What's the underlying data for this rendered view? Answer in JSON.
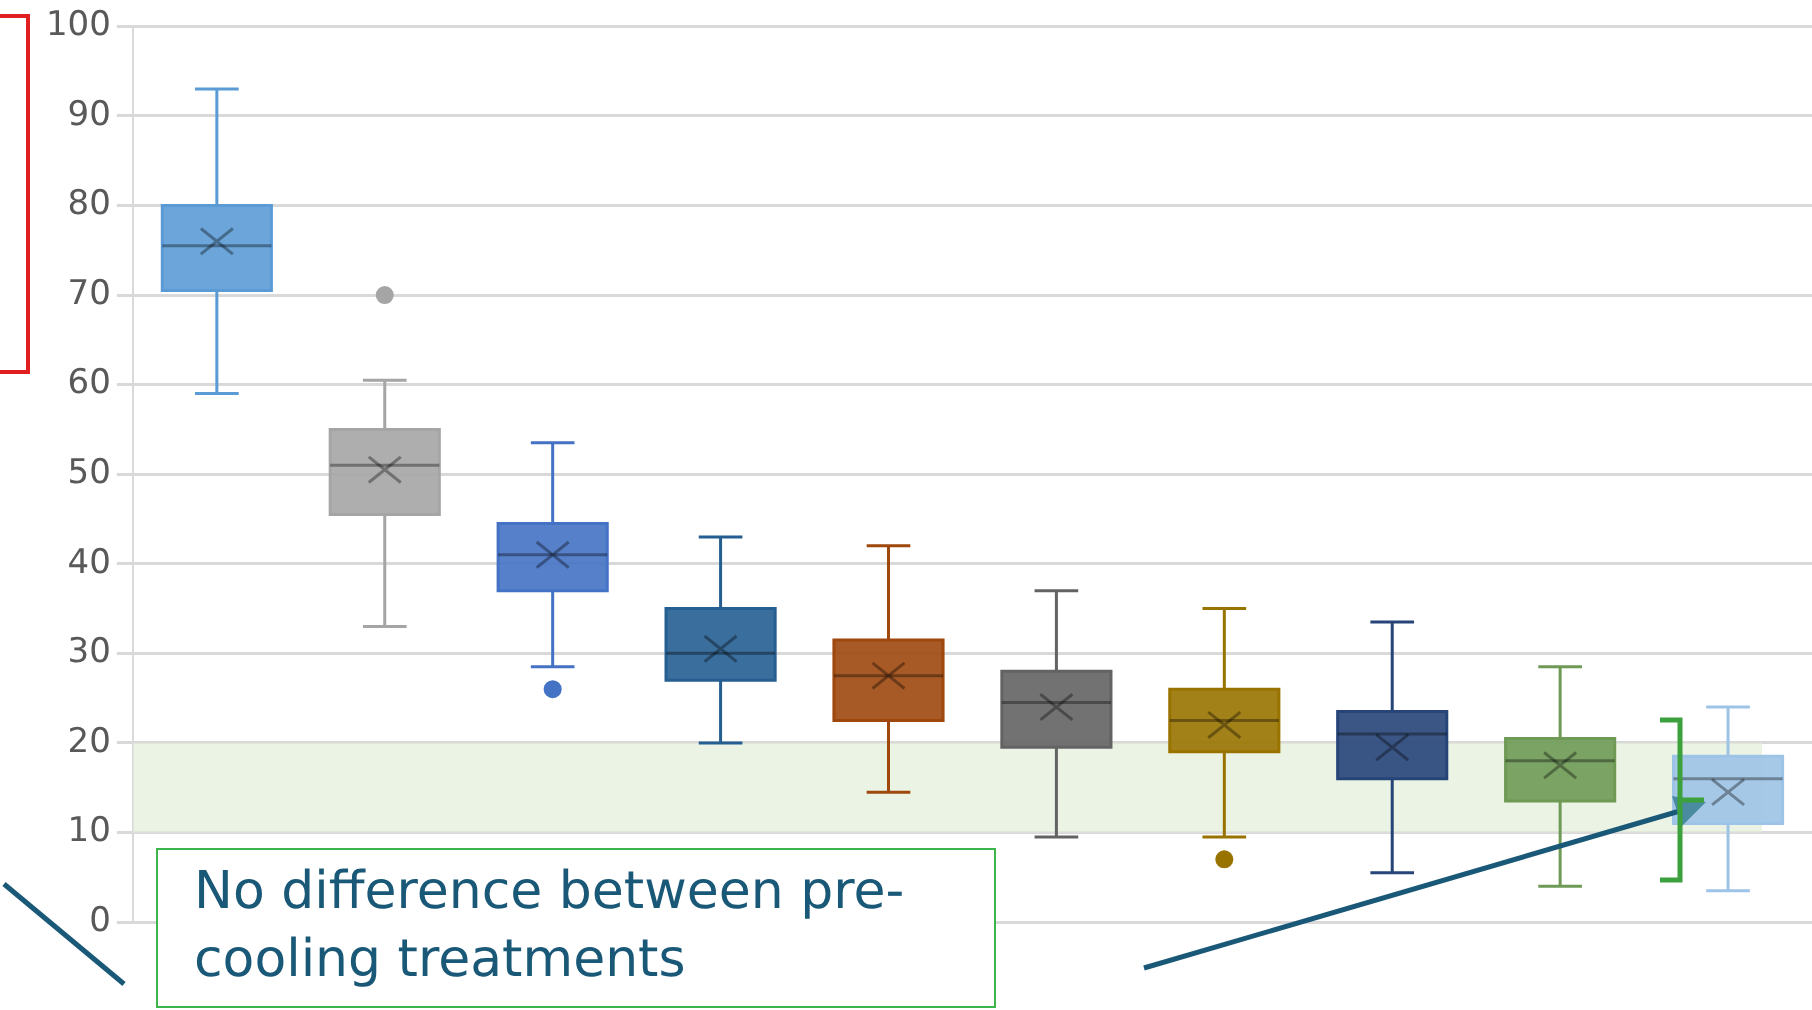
{
  "chart_data": {
    "type": "box",
    "categories": [
      null,
      null,
      null,
      null,
      null,
      null,
      null,
      null,
      null,
      null
    ],
    "colors": [
      "#5b9bd5",
      "#a5a5a5",
      "#4472c4",
      "#255e91",
      "#9e480e",
      "#636363",
      "#997300",
      "#264478",
      "#6e9a55",
      "#9dc3e6"
    ],
    "boxes": [
      {
        "low": 59,
        "q1": 70.5,
        "median": 75.5,
        "q3": 80,
        "high": 93,
        "mean": 76
      },
      {
        "low": 33,
        "q1": 45.5,
        "median": 51,
        "q3": 55,
        "high": 60.5,
        "mean": 50.5,
        "outliers": [
          70
        ]
      },
      {
        "low": 28.5,
        "q1": 37,
        "median": 41,
        "q3": 44.5,
        "high": 53.5,
        "mean": 41,
        "outliers": [
          26
        ]
      },
      {
        "low": 20,
        "q1": 27,
        "median": 30,
        "q3": 35,
        "high": 43,
        "mean": 30.5
      },
      {
        "low": 14.5,
        "q1": 22.5,
        "median": 27.5,
        "q3": 31.5,
        "high": 42,
        "mean": 27.5
      },
      {
        "low": 9.5,
        "q1": 19.5,
        "median": 24.5,
        "q3": 28,
        "high": 37,
        "mean": 24
      },
      {
        "low": 9.5,
        "q1": 19,
        "median": 22.5,
        "q3": 26,
        "high": 35,
        "mean": 22,
        "outliers": [
          7
        ]
      },
      {
        "low": 5.5,
        "q1": 16,
        "median": 21,
        "q3": 23.5,
        "high": 33.5,
        "mean": 19.5
      },
      {
        "low": 4,
        "q1": 13.5,
        "median": 18,
        "q3": 20.5,
        "high": 28.5,
        "mean": 17.5
      },
      {
        "low": 3.5,
        "q1": 11,
        "median": 16,
        "q3": 18.5,
        "high": 24,
        "mean": 14.5
      }
    ],
    "ylim": [
      0,
      100
    ],
    "yticks": [
      0,
      10,
      20,
      30,
      40,
      50,
      60,
      70,
      80,
      90,
      100
    ],
    "grid": "y",
    "legend": false,
    "bands": [
      {
        "axis": "y",
        "from": 10,
        "to": 20,
        "color": "#e2f0d9"
      }
    ],
    "annotations": [
      "No difference between pre-cooling treatments"
    ]
  }
}
